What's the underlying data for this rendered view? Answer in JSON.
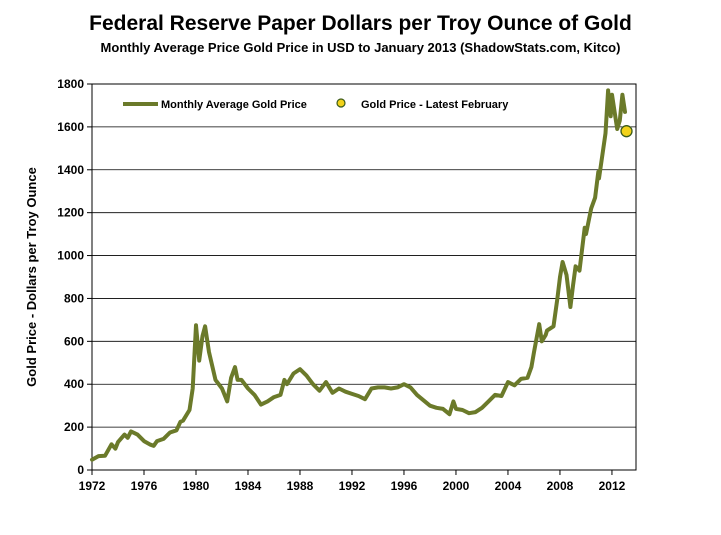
{
  "chart_data": {
    "type": "line",
    "title": "Federal Reserve Paper Dollars per Troy Ounce of Gold",
    "subtitle": "Monthly Average Price Gold Price in USD to January 2013 (ShadowStats.com, Kitco)",
    "xlabel": "",
    "ylabel": "Gold Price - Dollars per Troy Ounce",
    "xlim": [
      1972,
      2013.85
    ],
    "ylim": [
      0,
      1800
    ],
    "x_ticks": [
      "1972",
      "1976",
      "1980",
      "1984",
      "1988",
      "1992",
      "1996",
      "2000",
      "2004",
      "2008",
      "2012"
    ],
    "y_ticks": [
      "0",
      "200",
      "400",
      "600",
      "800",
      "1000",
      "1200",
      "1400",
      "1600",
      "1800"
    ],
    "grid": "horizontal",
    "legend_position": "top-left",
    "series": [
      {
        "name": "Monthly Average Gold Price",
        "color": "#6b7a2a",
        "points": [
          [
            1972.0,
            48
          ],
          [
            1972.5,
            65
          ],
          [
            1973.0,
            66
          ],
          [
            1973.5,
            120
          ],
          [
            1973.8,
            100
          ],
          [
            1974.0,
            130
          ],
          [
            1974.5,
            165
          ],
          [
            1974.75,
            150
          ],
          [
            1975.0,
            180
          ],
          [
            1975.5,
            165
          ],
          [
            1976.0,
            135
          ],
          [
            1976.5,
            118
          ],
          [
            1976.75,
            113
          ],
          [
            1977.0,
            135
          ],
          [
            1977.5,
            145
          ],
          [
            1978.0,
            175
          ],
          [
            1978.5,
            185
          ],
          [
            1978.8,
            225
          ],
          [
            1979.0,
            230
          ],
          [
            1979.5,
            280
          ],
          [
            1979.75,
            380
          ],
          [
            1980.0,
            675
          ],
          [
            1980.25,
            510
          ],
          [
            1980.5,
            625
          ],
          [
            1980.7,
            670
          ],
          [
            1981.0,
            550
          ],
          [
            1981.5,
            420
          ],
          [
            1982.0,
            380
          ],
          [
            1982.4,
            320
          ],
          [
            1982.7,
            430
          ],
          [
            1983.0,
            480
          ],
          [
            1983.2,
            420
          ],
          [
            1983.5,
            420
          ],
          [
            1984.0,
            380
          ],
          [
            1984.5,
            350
          ],
          [
            1985.0,
            305
          ],
          [
            1985.5,
            320
          ],
          [
            1986.0,
            340
          ],
          [
            1986.5,
            350
          ],
          [
            1986.8,
            420
          ],
          [
            1987.0,
            400
          ],
          [
            1987.5,
            450
          ],
          [
            1988.0,
            470
          ],
          [
            1988.5,
            440
          ],
          [
            1989.0,
            400
          ],
          [
            1989.5,
            370
          ],
          [
            1990.0,
            410
          ],
          [
            1990.5,
            360
          ],
          [
            1991.0,
            380
          ],
          [
            1991.5,
            365
          ],
          [
            1992.0,
            355
          ],
          [
            1992.5,
            345
          ],
          [
            1993.0,
            330
          ],
          [
            1993.5,
            380
          ],
          [
            1994.0,
            385
          ],
          [
            1994.5,
            385
          ],
          [
            1995.0,
            380
          ],
          [
            1995.5,
            385
          ],
          [
            1996.0,
            400
          ],
          [
            1996.5,
            385
          ],
          [
            1997.0,
            350
          ],
          [
            1997.5,
            325
          ],
          [
            1998.0,
            300
          ],
          [
            1998.5,
            290
          ],
          [
            1999.0,
            285
          ],
          [
            1999.5,
            260
          ],
          [
            1999.8,
            320
          ],
          [
            2000.0,
            285
          ],
          [
            2000.5,
            280
          ],
          [
            2001.0,
            265
          ],
          [
            2001.5,
            270
          ],
          [
            2002.0,
            290
          ],
          [
            2002.5,
            320
          ],
          [
            2003.0,
            350
          ],
          [
            2003.5,
            345
          ],
          [
            2004.0,
            410
          ],
          [
            2004.5,
            395
          ],
          [
            2005.0,
            425
          ],
          [
            2005.5,
            430
          ],
          [
            2005.8,
            480
          ],
          [
            2006.0,
            550
          ],
          [
            2006.4,
            680
          ],
          [
            2006.6,
            600
          ],
          [
            2006.9,
            630
          ],
          [
            2007.0,
            650
          ],
          [
            2007.5,
            670
          ],
          [
            2007.8,
            800
          ],
          [
            2008.0,
            900
          ],
          [
            2008.2,
            970
          ],
          [
            2008.5,
            910
          ],
          [
            2008.8,
            760
          ],
          [
            2009.0,
            860
          ],
          [
            2009.2,
            950
          ],
          [
            2009.5,
            930
          ],
          [
            2009.9,
            1130
          ],
          [
            2010.0,
            1100
          ],
          [
            2010.4,
            1220
          ],
          [
            2010.7,
            1270
          ],
          [
            2010.95,
            1390
          ],
          [
            2011.0,
            1360
          ],
          [
            2011.5,
            1570
          ],
          [
            2011.7,
            1770
          ],
          [
            2011.9,
            1650
          ],
          [
            2012.0,
            1750
          ],
          [
            2012.4,
            1590
          ],
          [
            2012.6,
            1630
          ],
          [
            2012.8,
            1750
          ],
          [
            2013.0,
            1670
          ]
        ]
      },
      {
        "name": "Gold Price - Latest February",
        "color": "#f2d21a",
        "points": [
          [
            2013.12,
            1580
          ]
        ]
      }
    ]
  }
}
